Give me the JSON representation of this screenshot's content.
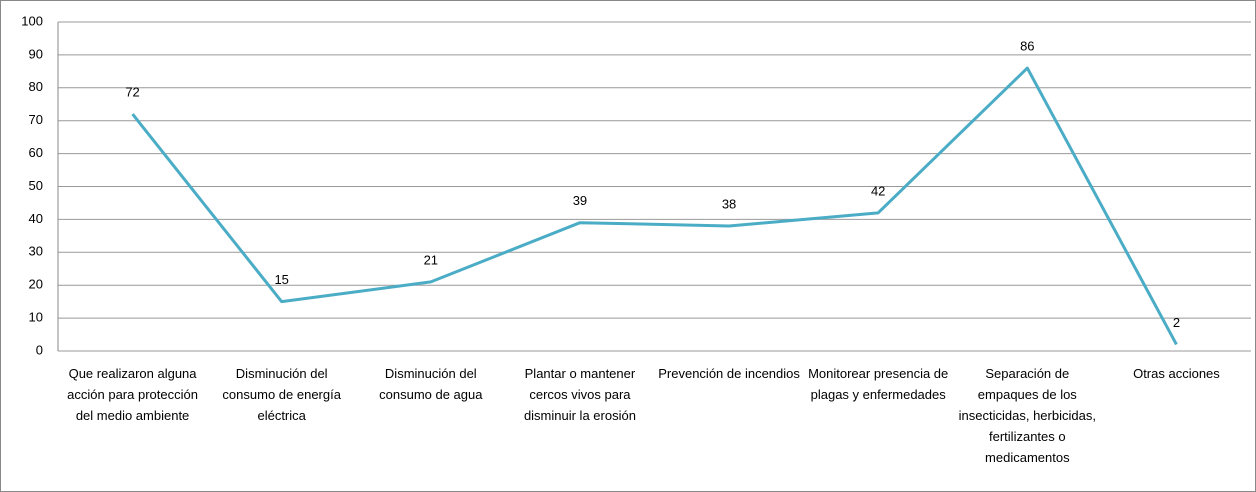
{
  "chart_data": {
    "type": "line",
    "categories": [
      "Que realizaron alguna acción para protección\ndel medio ambiente",
      "Disminución del consumo de energía eléctrica",
      "Disminución del consumo de agua",
      "Plantar o mantener cercos vivos para disminuir la erosión",
      "Prevención de incendios",
      "Monitorear presencia de plagas y enfermedades",
      "Separación de empaques de los insecticidas, herbicidas, fertilizantes o medicamentos",
      "Otras acciones"
    ],
    "series": [
      {
        "color": "#4bacc6",
        "values": [
          72,
          15,
          21,
          39,
          38,
          42,
          86,
          2
        ]
      }
    ],
    "ylim": [
      0,
      100
    ],
    "yticks": [
      0,
      10,
      20,
      30,
      40,
      50,
      60,
      70,
      80,
      90,
      100
    ],
    "grid": true
  }
}
